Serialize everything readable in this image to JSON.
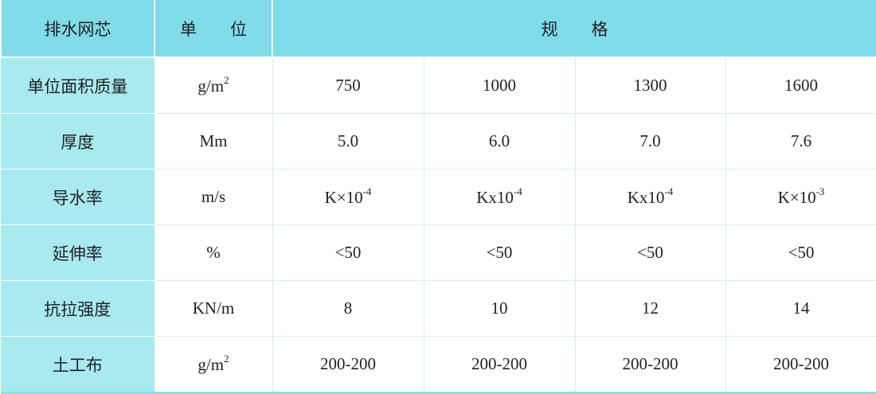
{
  "table": {
    "header": [
      "排水网芯",
      "单　　位",
      "规　　格"
    ],
    "rows": [
      {
        "label": "单位面积质量",
        "unit": {
          "text": "g/m",
          "sup": "2"
        },
        "values": [
          "750",
          "1000",
          "1300",
          "1600"
        ]
      },
      {
        "label": "厚度",
        "unit": "Mm",
        "values": [
          "5.0",
          "6.0",
          "7.0",
          "7.6"
        ]
      },
      {
        "label": "导水率",
        "unit": "m/s",
        "values": [
          {
            "text": "K×10",
            "sup": "-4"
          },
          {
            "text": "Kx10",
            "sup": "-4"
          },
          {
            "text": "Kx10",
            "sup": "-4"
          },
          {
            "text": "K×10",
            "sup": "-3"
          }
        ]
      },
      {
        "label": "延伸率",
        "unit": "%",
        "values": [
          "<50",
          "<50",
          "<50",
          "<50"
        ]
      },
      {
        "label": "抗拉强度",
        "unit": "KN/m",
        "values": [
          "8",
          "10",
          "12",
          "14"
        ]
      },
      {
        "label": "土工布",
        "unit": {
          "text": "g/m",
          "sup": "2"
        },
        "values": [
          "200-200",
          "200-200",
          "200-200",
          "200-200"
        ]
      }
    ]
  }
}
